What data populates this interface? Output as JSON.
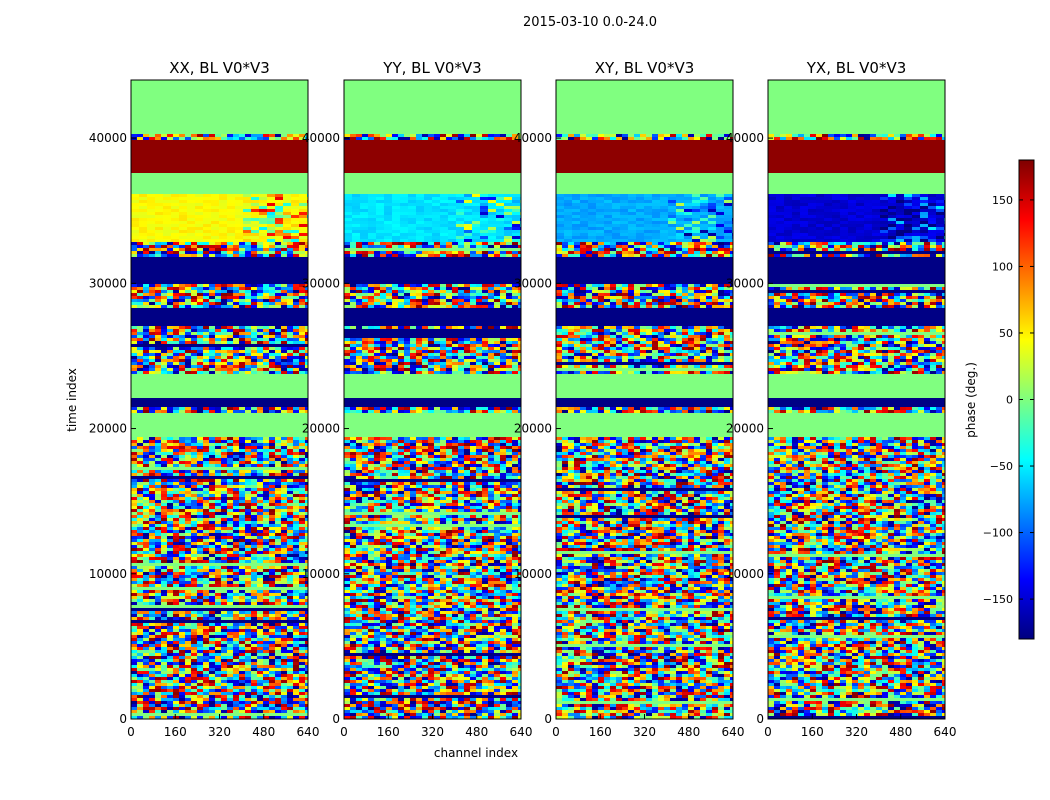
{
  "figure": {
    "suptitle": "2015-03-10 0.0-24.0",
    "xlabel": "channel index",
    "ylabel": "time index"
  },
  "colorbar": {
    "label": "phase (deg.)",
    "ticks": [
      -150,
      -100,
      -50,
      0,
      50,
      100,
      150
    ],
    "tick_labels": [
      "−150",
      "−100",
      "−50",
      "0",
      "50",
      "100",
      "150"
    ],
    "vmin": -180,
    "vmax": 180,
    "colormap": "jet",
    "colors": [
      "#00007f",
      "#0000ff",
      "#007fff",
      "#00ffff",
      "#7fff7f",
      "#ffff00",
      "#ff7f00",
      "#ff0000",
      "#7f0000"
    ]
  },
  "chart_data": [
    {
      "type": "heatmap",
      "title": "XX, BL V0*V3",
      "x_ticks": [
        0,
        160,
        320,
        480,
        640
      ],
      "y_ticks": [
        0,
        10000,
        20000,
        30000,
        40000
      ],
      "xlim": [
        0,
        640
      ],
      "ylim": [
        0,
        44000
      ],
      "value_unit": "phase (deg.)",
      "key": "xx"
    },
    {
      "type": "heatmap",
      "title": "YY, BL V0*V3",
      "x_ticks": [
        0,
        160,
        320,
        480,
        640
      ],
      "y_ticks": [
        0,
        10000,
        20000,
        30000,
        40000
      ],
      "xlim": [
        0,
        640
      ],
      "ylim": [
        0,
        44000
      ],
      "value_unit": "phase (deg.)",
      "key": "yy"
    },
    {
      "type": "heatmap",
      "title": "XY, BL V0*V3",
      "x_ticks": [
        0,
        160,
        320,
        480,
        640
      ],
      "y_ticks": [
        0,
        10000,
        20000,
        30000,
        40000
      ],
      "xlim": [
        0,
        640
      ],
      "ylim": [
        0,
        44000
      ],
      "value_unit": "phase (deg.)",
      "key": "xy"
    },
    {
      "type": "heatmap",
      "title": "YX, BL V0*V3",
      "x_ticks": [
        0,
        160,
        320,
        480,
        640
      ],
      "y_ticks": [
        0,
        10000,
        20000,
        30000,
        40000
      ],
      "xlim": [
        0,
        640
      ],
      "ylim": [
        0,
        44000
      ],
      "value_unit": "phase (deg.)",
      "key": "yx"
    }
  ],
  "band_structure": {
    "description_units": "time index ranges",
    "solid_bands": [
      {
        "from": 37600,
        "to": 39800,
        "value": 175
      },
      {
        "from": 36200,
        "to": 37600,
        "value": 0
      },
      {
        "from": 30000,
        "to": 31800,
        "value": -178
      },
      {
        "from": 27100,
        "to": 28300,
        "value": -178
      },
      {
        "from": 22100,
        "to": 23800,
        "value": 0
      },
      {
        "from": 21500,
        "to": 22100,
        "value": -178
      },
      {
        "from": 19500,
        "to": 21000,
        "value": 0
      },
      {
        "from": 40300,
        "to": 44000,
        "value": 0
      }
    ],
    "smooth_region": {
      "from": 32800,
      "to": 36200
    },
    "smooth_region_phase": {
      "xx": 45,
      "yy": -55,
      "xy": -75,
      "yx": -150
    },
    "smooth_region_break_channel": 390
  }
}
